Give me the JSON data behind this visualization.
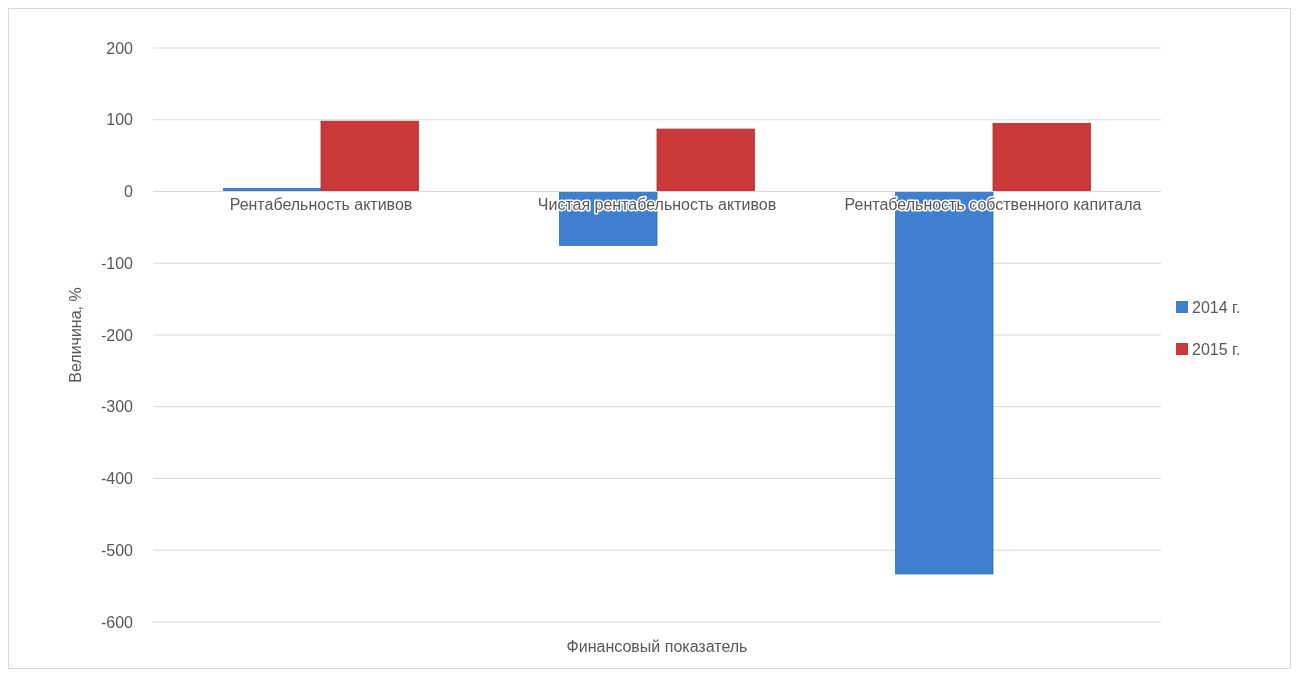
{
  "chart_data": {
    "type": "bar",
    "xlabel": "Финансовый показатель",
    "ylabel": "Величина, %",
    "categories": [
      "Рентабельность активов",
      "Чистая рентабельность активов",
      "Рентабельность собственного капитала"
    ],
    "series": [
      {
        "name": "2014 г.",
        "color": "#3f7fcf",
        "values": [
          4,
          -75,
          -533
        ]
      },
      {
        "name": "2015 г.",
        "color": "#c9393a",
        "values": [
          98,
          87,
          95
        ]
      }
    ],
    "ylim": [
      -600,
      200
    ],
    "yticks": [
      -600,
      -500,
      -400,
      -300,
      -200,
      -100,
      0,
      100,
      200
    ],
    "grid": "y",
    "legend": "right"
  }
}
